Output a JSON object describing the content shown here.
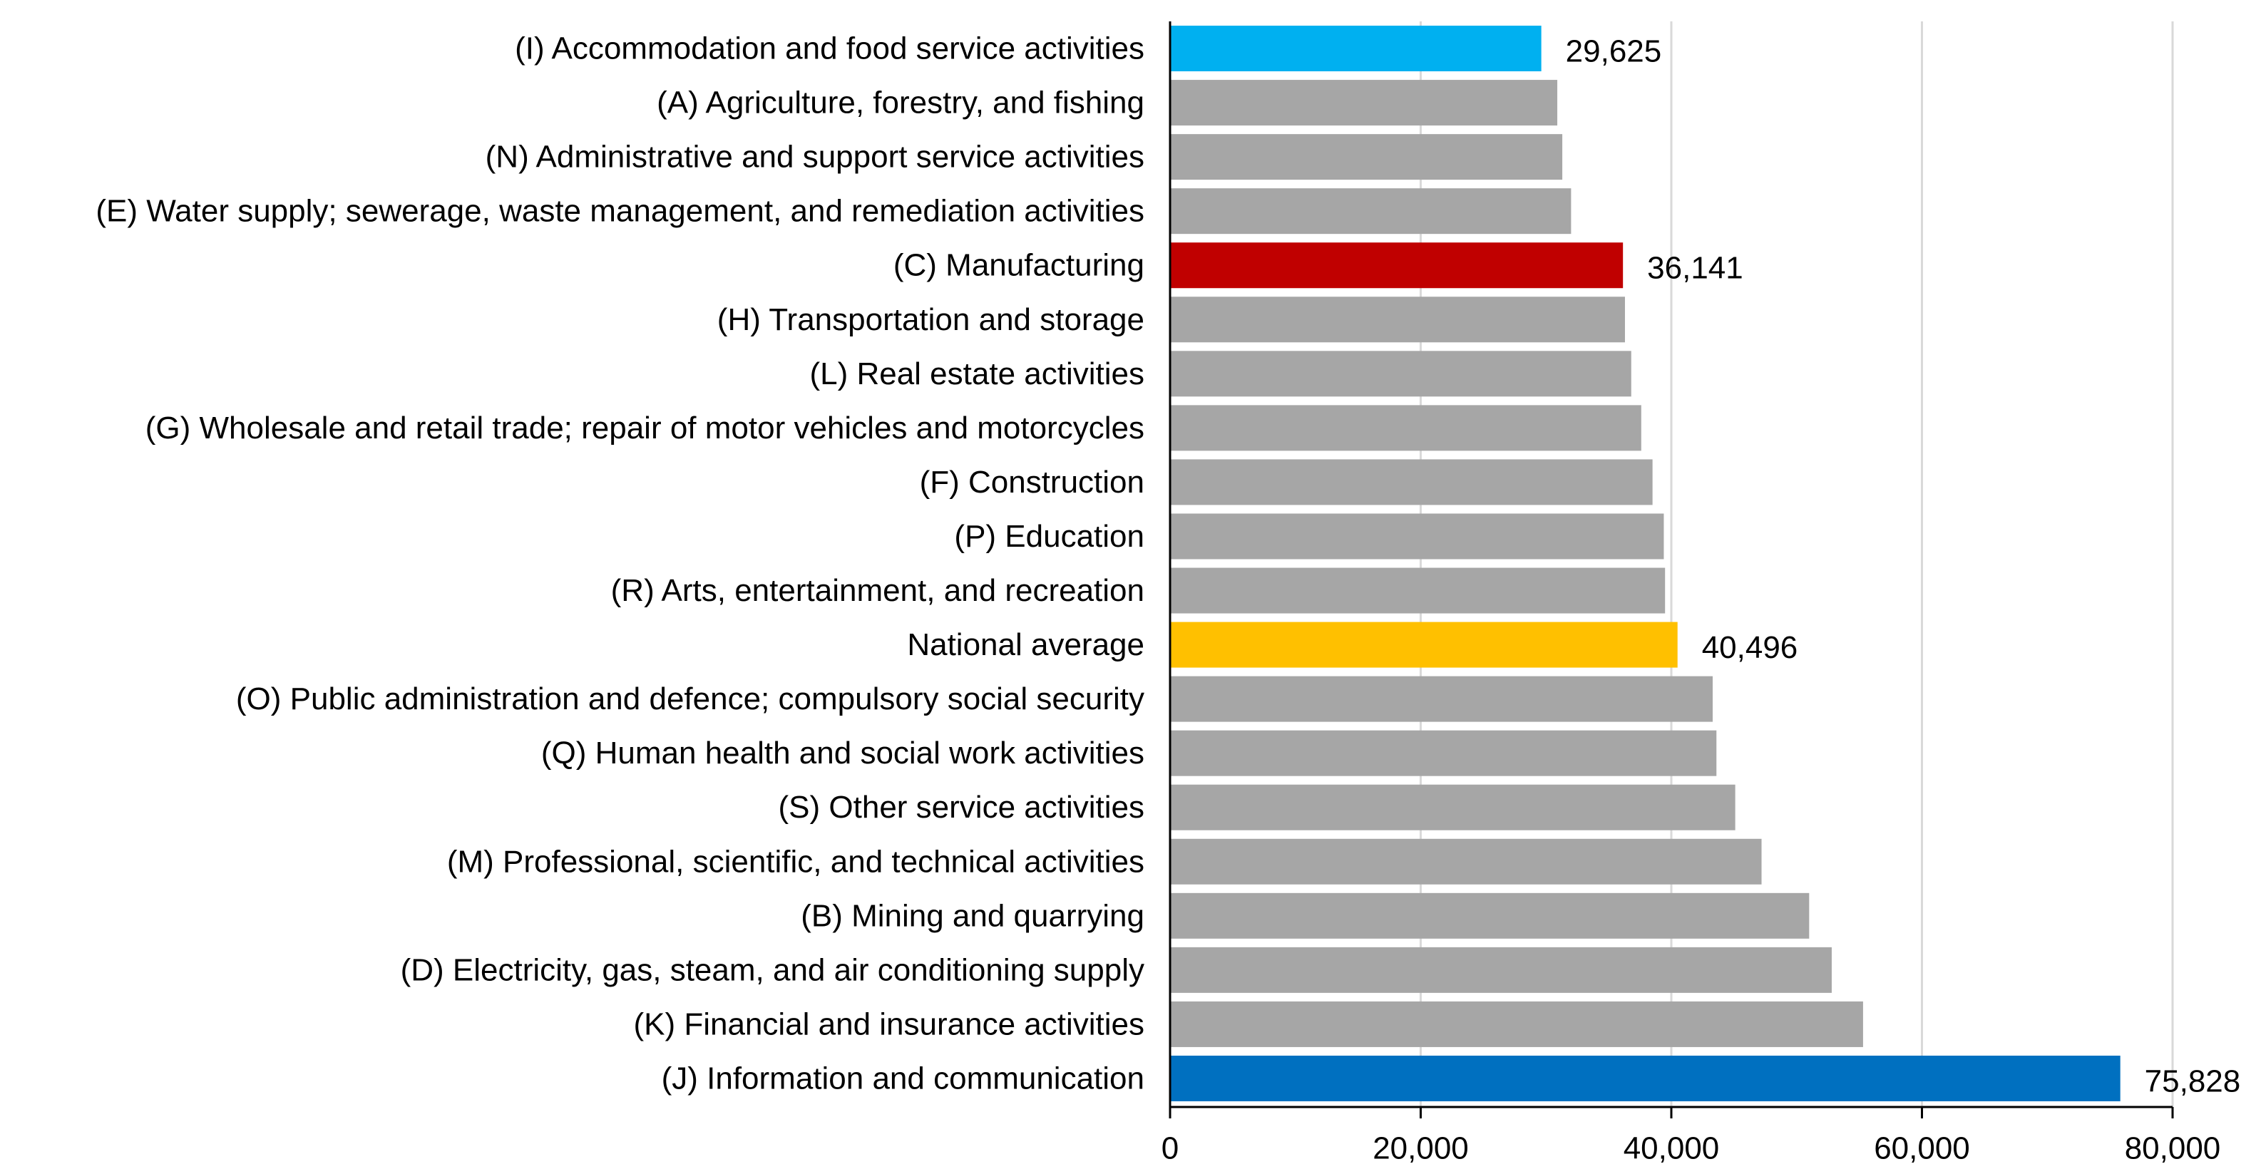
{
  "chart_data": {
    "type": "bar",
    "orientation": "horizontal",
    "categories": [
      "(I) Accommodation and food service activities",
      "(A) Agriculture, forestry, and fishing",
      "(N) Administrative and support service activities",
      "(E) Water supply; sewerage, waste management, and remediation activities",
      "(C) Manufacturing",
      "(H) Transportation and storage",
      "(L) Real estate activities",
      "(G) Wholesale and retail trade; repair of motor vehicles and motorcycles",
      "(F) Construction",
      "(P) Education",
      "(R) Arts, entertainment, and recreation",
      "National average",
      "(O) Public administration and defence; compulsory social security",
      "(Q) Human health and social work activities",
      "(S) Other service activities",
      "(M) Professional, scientific, and technical activities",
      "(B) Mining and quarrying",
      "(D) Electricity, gas, steam, and air conditioning supply",
      "(K) Financial and insurance activities",
      "(J) Information and communication"
    ],
    "values": [
      29625,
      30900,
      31300,
      32000,
      36141,
      36300,
      36800,
      37600,
      38500,
      39400,
      39500,
      40496,
      43300,
      43600,
      45100,
      47200,
      51000,
      52800,
      55300,
      75828
    ],
    "data_labels": [
      "29,625",
      "",
      "",
      "",
      "36,141",
      "",
      "",
      "",
      "",
      "",
      "",
      "40,496",
      "",
      "",
      "",
      "",
      "",
      "",
      "",
      "75,828"
    ],
    "colors": [
      "#00b0f0",
      "#a6a6a6",
      "#a6a6a6",
      "#a6a6a6",
      "#c00000",
      "#a6a6a6",
      "#a6a6a6",
      "#a6a6a6",
      "#a6a6a6",
      "#a6a6a6",
      "#a6a6a6",
      "#ffc000",
      "#a6a6a6",
      "#a6a6a6",
      "#a6a6a6",
      "#a6a6a6",
      "#a6a6a6",
      "#a6a6a6",
      "#a6a6a6",
      "#0070c0"
    ],
    "xlim": [
      0,
      80000
    ],
    "xticks": [
      0,
      20000,
      40000,
      60000,
      80000
    ],
    "xtick_labels": [
      "0",
      "20,000",
      "40,000",
      "60,000",
      "80,000"
    ],
    "grid": "vertical",
    "gridline_color": "#d9d9d9",
    "title": "",
    "xlabel": "",
    "ylabel": ""
  }
}
